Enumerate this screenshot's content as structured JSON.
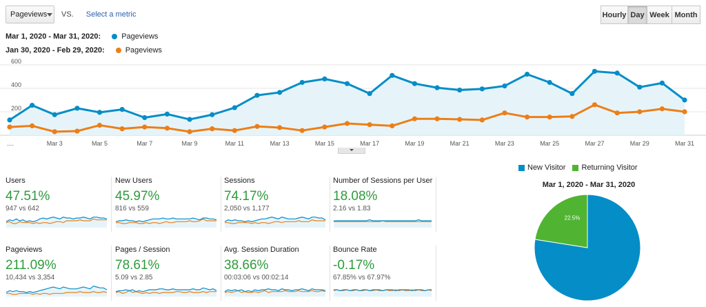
{
  "controls": {
    "metric_dropdown": "Pageviews",
    "vs_label": "VS.",
    "select_metric": "Select a metric",
    "granularity": [
      {
        "label": "Hourly",
        "active": false
      },
      {
        "label": "Day",
        "active": true
      },
      {
        "label": "Week",
        "active": false
      },
      {
        "label": "Month",
        "active": false
      }
    ]
  },
  "legend": [
    {
      "range": "Mar 1, 2020 - Mar 31, 2020:",
      "metric": "Pageviews",
      "color": "#058dc7"
    },
    {
      "range": "Jan 30, 2020 - Feb 29, 2020:",
      "metric": "Pageviews",
      "color": "#ed7e17"
    }
  ],
  "chart_data": [
    {
      "type": "line",
      "x": [
        1,
        2,
        3,
        4,
        5,
        6,
        7,
        8,
        9,
        10,
        11,
        12,
        13,
        14,
        15,
        16,
        17,
        18,
        19,
        20,
        21,
        22,
        23,
        24,
        25,
        26,
        27,
        28,
        29,
        30,
        31
      ],
      "xtick_labels": [
        "Mar 3",
        "Mar 5",
        "Mar 7",
        "Mar 9",
        "Mar 11",
        "Mar 13",
        "Mar 15",
        "Mar 17",
        "Mar 19",
        "Mar 21",
        "Mar 23",
        "Mar 25",
        "Mar 27",
        "Mar 29",
        "Mar 31"
      ],
      "xtick_positions": [
        3,
        5,
        7,
        9,
        11,
        13,
        15,
        17,
        19,
        21,
        23,
        25,
        27,
        29,
        31
      ],
      "ylim": [
        0,
        600
      ],
      "yticks": [
        600,
        400,
        200
      ],
      "series": [
        {
          "name": "Mar 1, 2020 - Mar 31, 2020",
          "color": "#058dc7",
          "fill": "#e6f4fa",
          "values": [
            130,
            255,
            175,
            230,
            195,
            220,
            150,
            180,
            135,
            175,
            235,
            340,
            365,
            450,
            480,
            440,
            355,
            510,
            440,
            405,
            385,
            395,
            420,
            520,
            450,
            355,
            545,
            530,
            410,
            445,
            300
          ]
        },
        {
          "name": "Jan 30, 2020 - Feb 29, 2020",
          "color": "#ed7e17",
          "values": [
            70,
            80,
            30,
            35,
            85,
            55,
            70,
            60,
            30,
            55,
            40,
            75,
            65,
            40,
            70,
            100,
            90,
            80,
            140,
            140,
            135,
            130,
            190,
            155,
            155,
            160,
            260,
            190,
            200,
            225,
            200
          ]
        }
      ]
    },
    {
      "type": "pie",
      "title": "Mar 1, 2020 - Mar 31, 2020",
      "labels": [
        "New Visitor",
        "Returning Visitor"
      ],
      "values": [
        77.5,
        22.5
      ],
      "value_labels": [
        "77.5%",
        "22.5%"
      ],
      "colors": [
        "#058dc7",
        "#50b432"
      ]
    }
  ],
  "metrics": [
    {
      "label": "Users",
      "pct": "47.51%",
      "compare": "947 vs 642",
      "spark_a": [
        5,
        7,
        6,
        8,
        6,
        7,
        5,
        6,
        5,
        6,
        8,
        9,
        8,
        9,
        10,
        9,
        8,
        10,
        9,
        9,
        8,
        9,
        9,
        10,
        9,
        8,
        10,
        10,
        9,
        9,
        8
      ],
      "spark_b": [
        4,
        5,
        3,
        3,
        5,
        4,
        4,
        4,
        3,
        4,
        3,
        4,
        4,
        3,
        4,
        5,
        5,
        4,
        6,
        6,
        6,
        6,
        7,
        6,
        6,
        6,
        8,
        7,
        7,
        7,
        7
      ]
    },
    {
      "label": "New Users",
      "pct": "45.97%",
      "compare": "816 vs 559",
      "spark_a": [
        5,
        6,
        6,
        7,
        6,
        6,
        5,
        6,
        5,
        6,
        7,
        8,
        8,
        8,
        9,
        8,
        8,
        9,
        8,
        8,
        8,
        8,
        8,
        9,
        8,
        7,
        9,
        9,
        8,
        8,
        7
      ],
      "spark_b": [
        4,
        4,
        3,
        3,
        4,
        4,
        4,
        3,
        3,
        4,
        3,
        4,
        4,
        3,
        4,
        5,
        4,
        4,
        5,
        5,
        5,
        5,
        6,
        5,
        5,
        6,
        8,
        6,
        6,
        6,
        6
      ]
    },
    {
      "label": "Sessions",
      "pct": "74.17%",
      "compare": "2,050 vs 1,177",
      "spark_a": [
        5,
        7,
        6,
        7,
        6,
        6,
        5,
        6,
        5,
        6,
        7,
        8,
        8,
        9,
        10,
        9,
        8,
        10,
        9,
        8,
        8,
        8,
        9,
        10,
        9,
        8,
        10,
        10,
        9,
        9,
        7
      ],
      "spark_b": [
        4,
        4,
        3,
        3,
        4,
        4,
        4,
        4,
        3,
        4,
        3,
        4,
        4,
        3,
        4,
        5,
        5,
        4,
        5,
        5,
        5,
        5,
        6,
        5,
        5,
        5,
        7,
        6,
        6,
        6,
        6
      ]
    },
    {
      "label": "Number of Sessions per User",
      "pct": "18.08%",
      "compare": "2.16 vs 1.83",
      "spark_a": [
        6,
        6,
        6,
        6,
        6,
        6,
        6,
        6,
        6,
        6,
        6,
        7,
        6,
        6,
        6,
        6,
        6,
        6,
        6,
        6,
        6,
        6,
        6,
        6,
        6,
        6,
        7,
        6,
        6,
        6,
        6
      ],
      "spark_b": [
        5,
        5,
        5,
        5,
        5,
        5,
        5,
        5,
        5,
        5,
        5,
        5,
        5,
        5,
        5,
        6,
        5,
        5,
        5,
        5,
        5,
        5,
        5,
        5,
        5,
        5,
        5,
        5,
        5,
        5,
        5
      ]
    },
    {
      "label": "Pageviews",
      "pct": "211.09%",
      "compare": "10,434 vs 3,354",
      "spark_a": [
        3,
        5,
        4,
        5,
        4,
        4,
        3,
        4,
        3,
        4,
        5,
        6,
        7,
        8,
        9,
        8,
        7,
        9,
        8,
        7,
        7,
        7,
        8,
        9,
        8,
        7,
        10,
        9,
        8,
        8,
        6
      ],
      "spark_b": [
        2,
        2,
        1,
        1,
        2,
        2,
        2,
        2,
        1,
        2,
        1,
        2,
        2,
        1,
        2,
        2,
        2,
        2,
        3,
        3,
        3,
        3,
        4,
        3,
        3,
        3,
        4,
        3,
        3,
        4,
        3
      ]
    },
    {
      "label": "Pages / Session",
      "pct": "78.61%",
      "compare": "5.09 vs 2.85",
      "spark_a": [
        4,
        5,
        5,
        6,
        5,
        6,
        4,
        5,
        4,
        5,
        6,
        6,
        6,
        7,
        7,
        6,
        6,
        7,
        6,
        6,
        6,
        6,
        6,
        7,
        6,
        6,
        8,
        7,
        6,
        7,
        5
      ],
      "spark_b": [
        3,
        4,
        2,
        3,
        5,
        3,
        4,
        3,
        2,
        3,
        2,
        3,
        3,
        2,
        3,
        3,
        3,
        3,
        4,
        4,
        3,
        3,
        4,
        3,
        3,
        3,
        4,
        3,
        4,
        4,
        4
      ]
    },
    {
      "label": "Avg. Session Duration",
      "pct": "38.66%",
      "compare": "00:03:06 vs 00:02:14",
      "spark_a": [
        4,
        6,
        5,
        6,
        5,
        6,
        4,
        5,
        4,
        6,
        5,
        6,
        6,
        7,
        6,
        6,
        5,
        7,
        6,
        6,
        5,
        6,
        6,
        7,
        6,
        5,
        7,
        6,
        6,
        6,
        5
      ],
      "spark_b": [
        3,
        4,
        3,
        4,
        5,
        3,
        4,
        3,
        3,
        4,
        3,
        4,
        5,
        3,
        4,
        4,
        4,
        4,
        5,
        4,
        4,
        4,
        5,
        4,
        4,
        4,
        5,
        4,
        4,
        5,
        4
      ]
    },
    {
      "label": "Bounce Rate",
      "pct": "-0.17%",
      "compare": "67.85% vs 67.97%",
      "spark_a": [
        6,
        6,
        5,
        6,
        6,
        5,
        6,
        6,
        5,
        6,
        6,
        5,
        6,
        6,
        6,
        5,
        6,
        6,
        6,
        5,
        6,
        6,
        6,
        6,
        5,
        6,
        6,
        6,
        5,
        6,
        6
      ],
      "spark_b": [
        5,
        6,
        5,
        5,
        6,
        5,
        5,
        6,
        5,
        5,
        6,
        5,
        5,
        6,
        5,
        5,
        6,
        5,
        5,
        6,
        5,
        6,
        5,
        5,
        6,
        5,
        6,
        5,
        5,
        6,
        5
      ]
    }
  ]
}
